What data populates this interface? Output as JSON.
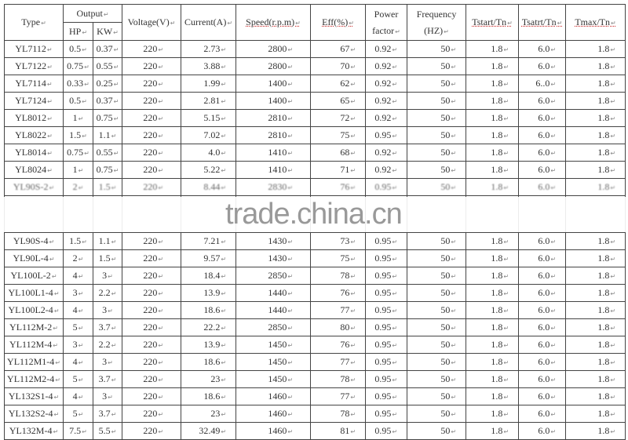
{
  "header": {
    "type": "Type",
    "output": "Output",
    "hp": "HP",
    "kw": "KW",
    "voltage": "Voltage(V)",
    "current": "Current(A)",
    "speed": "Speed(r.p.m)",
    "eff": "Eff(%)",
    "power_factor_1": "Power",
    "power_factor_2": "factor",
    "frequency_1": "Frequency",
    "frequency_2": "(HZ)",
    "tstart": "Tstart/Tn",
    "tsatrt": "Tsatrt/Tn",
    "tmax": "Tmax/Tn"
  },
  "rows": [
    [
      "YL7112",
      "0.5",
      "0.37",
      "220",
      "2.73",
      "2800",
      "67",
      "0.92",
      "50",
      "1.8",
      "6.0",
      "1.8"
    ],
    [
      "YL7122",
      "0.75",
      "0.55",
      "220",
      "3.88",
      "2800",
      "70",
      "0.92",
      "50",
      "1.8",
      "6.0",
      "1.8"
    ],
    [
      "YL7114",
      "0.33",
      "0.25",
      "220",
      "1.99",
      "1400",
      "62",
      "0.92",
      "50",
      "1.8",
      "6..0",
      "1.8"
    ],
    [
      "YL7124",
      "0.5",
      "0.37",
      "220",
      "2.81",
      "1400",
      "65",
      "0.92",
      "50",
      "1.8",
      "6.0",
      "1.8"
    ],
    [
      "YL8012",
      "1",
      "0.75",
      "220",
      "5.15",
      "2810",
      "72",
      "0.92",
      "50",
      "1.8",
      "6.0",
      "1.8"
    ],
    [
      "YL8022",
      "1.5",
      "1.1",
      "220",
      "7.02",
      "2810",
      "75",
      "0.95",
      "50",
      "1.8",
      "6.0",
      "1.8"
    ],
    [
      "YL8014",
      "0.75",
      "0.55",
      "220",
      "4.0",
      "1410",
      "68",
      "0.92",
      "50",
      "1.8",
      "6.0",
      "1.8"
    ],
    [
      "YL8024",
      "1",
      "0.75",
      "220",
      "5.22",
      "1410",
      "71",
      "0.92",
      "50",
      "1.8",
      "6.0",
      "1.8"
    ],
    [
      "YL90S-2",
      "2",
      "1.5",
      "220",
      "8.44",
      "2830",
      "76",
      "0.95",
      "50",
      "1.8",
      "6.0",
      "1.8"
    ],
    [
      "",
      "",
      "",
      "",
      "",
      "",
      "",
      "",
      "",
      "",
      "",
      ""
    ],
    [
      "YL90S-4",
      "1.5",
      "1.1",
      "220",
      "7.21",
      "1430",
      "73",
      "0.95",
      "50",
      "1.8",
      "6.0",
      "1.8"
    ],
    [
      "YL90L-4",
      "2",
      "1.5",
      "220",
      "9.57",
      "1430",
      "75",
      "0.95",
      "50",
      "1.8",
      "6.0",
      "1.8"
    ],
    [
      "YL100L-2",
      "4",
      "3",
      "220",
      "18.4",
      "2850",
      "78",
      "0.95",
      "50",
      "1.8",
      "6.0",
      "1.8"
    ],
    [
      "YL100L1-4",
      "3",
      "2.2",
      "220",
      "13.9",
      "1440",
      "76",
      "0.95",
      "50",
      "1.8",
      "6.0",
      "1.8"
    ],
    [
      "YL100L2-4",
      "4",
      "3",
      "220",
      "18.6",
      "1440",
      "77",
      "0.95",
      "50",
      "1.8",
      "6.0",
      "1.8"
    ],
    [
      "YL112M-2",
      "5",
      "3.7",
      "220",
      "22.2",
      "2850",
      "80",
      "0.95",
      "50",
      "1.8",
      "6.0",
      "1.8"
    ],
    [
      "YL112M-4",
      "3",
      "2.2",
      "220",
      "13.9",
      "1450",
      "76",
      "0.95",
      "50",
      "1.8",
      "6.0",
      "1.8"
    ],
    [
      "YL112M1-4",
      "4",
      "3",
      "220",
      "18.6",
      "1450",
      "77",
      "0.95",
      "50",
      "1.8",
      "6.0",
      "1.8"
    ],
    [
      "YL112M2-4",
      "5",
      "3.7",
      "220",
      "23",
      "1450",
      "78",
      "0.95",
      "50",
      "1.8",
      "6.0",
      "1.8"
    ],
    [
      "YL132S1-4",
      "4",
      "3",
      "220",
      "18.6",
      "1460",
      "77",
      "0.95",
      "50",
      "1.8",
      "6.0",
      "1.8"
    ],
    [
      "YL132S2-4",
      "5",
      "3.7",
      "220",
      "23",
      "1460",
      "78",
      "0.95",
      "50",
      "1.8",
      "6.0",
      "1.8"
    ],
    [
      "YL132M-4",
      "7.5",
      "5.5",
      "220",
      "32.49",
      "1460",
      "81",
      "0.95",
      "50",
      "1.8",
      "6.0",
      "1.8"
    ]
  ],
  "watermark": "trade.china.cn"
}
